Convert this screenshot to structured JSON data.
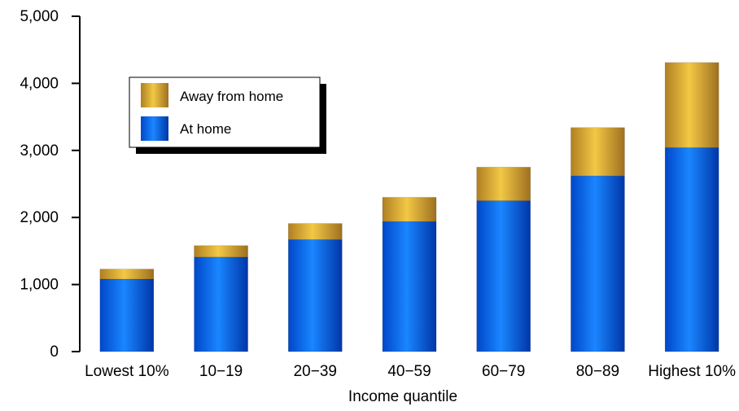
{
  "chart_data": {
    "type": "bar",
    "stacked": true,
    "categories": [
      "Lowest 10%",
      "10−19",
      "20−39",
      "40−59",
      "60−79",
      "80−89",
      "Highest 10%"
    ],
    "series": [
      {
        "name": "At home",
        "values": [
          1080,
          1410,
          1670,
          1940,
          2250,
          2620,
          3040
        ],
        "color": "#0a6bf0"
      },
      {
        "name": "Away from home",
        "values": [
          150,
          170,
          240,
          360,
          500,
          720,
          1270
        ],
        "color": "#d4a239"
      }
    ],
    "y_ticks": [
      "0",
      "1,000",
      "2,000",
      "3,000",
      "4,000",
      "5,000"
    ],
    "ylim": [
      0,
      5000
    ],
    "xlabel": "Income quantile",
    "ylabel": "",
    "title": "",
    "grid": false,
    "legend_position": "top-left"
  }
}
